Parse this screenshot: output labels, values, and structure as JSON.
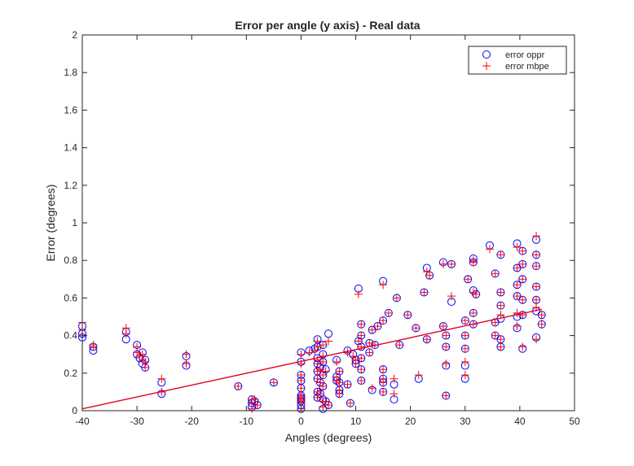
{
  "chart_data": {
    "type": "scatter",
    "title": "Error per angle (y axis) - Real data",
    "xlabel": "Angles (degrees)",
    "ylabel": "Error (degrees)",
    "xlim": [
      -40,
      50
    ],
    "ylim": [
      0,
      2
    ],
    "x_ticks": [
      "-40",
      "-30",
      "-20",
      "-10",
      "0",
      "10",
      "20",
      "30",
      "40",
      "50"
    ],
    "y_ticks": [
      "0",
      "0.2",
      "0.4",
      "0.6",
      "0.8",
      "1",
      "1.2",
      "1.4",
      "1.6",
      "1.8",
      "2"
    ],
    "grid": false,
    "legend_position": "top-right",
    "legend": [
      "error oppr",
      "error mbpe"
    ],
    "series": [
      {
        "name": "error oppr",
        "marker": "circle",
        "color": "#0000ff",
        "points": [
          [
            -40,
            0.45
          ],
          [
            -40,
            0.41
          ],
          [
            -40,
            0.39
          ],
          [
            -38,
            0.34
          ],
          [
            -38,
            0.32
          ],
          [
            -32,
            0.42
          ],
          [
            -32,
            0.38
          ],
          [
            -30,
            0.35
          ],
          [
            -30,
            0.3
          ],
          [
            -29.5,
            0.28
          ],
          [
            -29,
            0.31
          ],
          [
            -29,
            0.25
          ],
          [
            -28.5,
            0.27
          ],
          [
            -28.5,
            0.23
          ],
          [
            -25.5,
            0.15
          ],
          [
            -25.5,
            0.09
          ],
          [
            -21,
            0.29
          ],
          [
            -21,
            0.24
          ],
          [
            -11.5,
            0.13
          ],
          [
            -9,
            0.06
          ],
          [
            -9,
            0.04
          ],
          [
            -9,
            0.02
          ],
          [
            -8.5,
            0.05
          ],
          [
            -8,
            0.03
          ],
          [
            -5,
            0.15
          ],
          [
            0,
            0.31
          ],
          [
            0,
            0.26
          ],
          [
            0,
            0.19
          ],
          [
            0,
            0.16
          ],
          [
            0,
            0.12
          ],
          [
            0,
            0.08
          ],
          [
            0,
            0.07
          ],
          [
            0,
            0.06
          ],
          [
            0,
            0.05
          ],
          [
            0,
            0.03
          ],
          [
            0,
            0.01
          ],
          [
            1.5,
            0.32
          ],
          [
            2.5,
            0.33
          ],
          [
            3,
            0.38
          ],
          [
            3,
            0.34
          ],
          [
            3,
            0.28
          ],
          [
            3,
            0.25
          ],
          [
            3,
            0.21
          ],
          [
            3,
            0.17
          ],
          [
            3,
            0.1
          ],
          [
            3,
            0.07
          ],
          [
            3.5,
            0.23
          ],
          [
            3.5,
            0.15
          ],
          [
            3.5,
            0.09
          ],
          [
            4,
            0.35
          ],
          [
            4,
            0.3
          ],
          [
            4,
            0.26
          ],
          [
            4,
            0.19
          ],
          [
            4,
            0.13
          ],
          [
            4,
            0.06
          ],
          [
            4,
            0.01
          ],
          [
            4.5,
            0.22
          ],
          [
            4.5,
            0.05
          ],
          [
            5,
            0.41
          ],
          [
            5,
            0.03
          ],
          [
            6.5,
            0.27
          ],
          [
            6.5,
            0.18
          ],
          [
            6.5,
            0.16
          ],
          [
            7,
            0.21
          ],
          [
            7,
            0.15
          ],
          [
            7,
            0.11
          ],
          [
            7,
            0.09
          ],
          [
            8.5,
            0.32
          ],
          [
            8.5,
            0.14
          ],
          [
            9,
            0.04
          ],
          [
            9.5,
            0.3
          ],
          [
            10,
            0.27
          ],
          [
            10,
            0.25
          ],
          [
            10.5,
            0.65
          ],
          [
            10.5,
            0.37
          ],
          [
            11,
            0.46
          ],
          [
            11,
            0.4
          ],
          [
            11,
            0.34
          ],
          [
            11,
            0.28
          ],
          [
            11,
            0.22
          ],
          [
            11,
            0.16
          ],
          [
            12.5,
            0.36
          ],
          [
            12.5,
            0.31
          ],
          [
            13,
            0.43
          ],
          [
            13,
            0.11
          ],
          [
            13.5,
            0.35
          ],
          [
            14,
            0.45
          ],
          [
            15,
            0.69
          ],
          [
            15,
            0.48
          ],
          [
            15,
            0.22
          ],
          [
            15,
            0.17
          ],
          [
            15,
            0.15
          ],
          [
            15,
            0.1
          ],
          [
            16,
            0.52
          ],
          [
            17,
            0.06
          ],
          [
            17,
            0.14
          ],
          [
            17.5,
            0.6
          ],
          [
            18,
            0.35
          ],
          [
            19.5,
            0.51
          ],
          [
            21,
            0.44
          ],
          [
            21.5,
            0.17
          ],
          [
            22.5,
            0.63
          ],
          [
            23,
            0.76
          ],
          [
            23,
            0.38
          ],
          [
            23.5,
            0.72
          ],
          [
            26,
            0.79
          ],
          [
            26,
            0.45
          ],
          [
            26.5,
            0.4
          ],
          [
            26.5,
            0.34
          ],
          [
            26.5,
            0.24
          ],
          [
            26.5,
            0.08
          ],
          [
            27.5,
            0.78
          ],
          [
            27.5,
            0.58
          ],
          [
            30,
            0.48
          ],
          [
            30,
            0.4
          ],
          [
            30,
            0.33
          ],
          [
            30,
            0.24
          ],
          [
            30,
            0.17
          ],
          [
            30.5,
            0.7
          ],
          [
            31.5,
            0.81
          ],
          [
            31.5,
            0.79
          ],
          [
            31.5,
            0.64
          ],
          [
            31.5,
            0.46
          ],
          [
            31.5,
            0.52
          ],
          [
            32,
            0.62
          ],
          [
            34.5,
            0.88
          ],
          [
            35.5,
            0.73
          ],
          [
            35.5,
            0.47
          ],
          [
            35.5,
            0.4
          ],
          [
            36.5,
            0.83
          ],
          [
            36.5,
            0.63
          ],
          [
            36.5,
            0.56
          ],
          [
            36.5,
            0.49
          ],
          [
            36.5,
            0.38
          ],
          [
            36.5,
            0.34
          ],
          [
            39.5,
            0.89
          ],
          [
            39.5,
            0.76
          ],
          [
            39.5,
            0.67
          ],
          [
            39.5,
            0.61
          ],
          [
            39.5,
            0.5
          ],
          [
            39.5,
            0.44
          ],
          [
            40.5,
            0.85
          ],
          [
            40.5,
            0.78
          ],
          [
            40.5,
            0.7
          ],
          [
            40.5,
            0.59
          ],
          [
            40.5,
            0.51
          ],
          [
            40.5,
            0.33
          ],
          [
            43,
            0.91
          ],
          [
            43,
            0.83
          ],
          [
            43,
            0.77
          ],
          [
            43,
            0.66
          ],
          [
            43,
            0.59
          ],
          [
            43,
            0.53
          ],
          [
            43,
            0.39
          ],
          [
            44,
            0.51
          ],
          [
            44,
            0.46
          ]
        ]
      },
      {
        "name": "error mbpe",
        "marker": "plus",
        "color": "#ff0000",
        "points": [
          [
            -40,
            0.47
          ],
          [
            -40,
            0.43
          ],
          [
            -40,
            0.4
          ],
          [
            -38,
            0.35
          ],
          [
            -38,
            0.34
          ],
          [
            -32,
            0.44
          ],
          [
            -32,
            0.41
          ],
          [
            -30,
            0.34
          ],
          [
            -30,
            0.31
          ],
          [
            -29.5,
            0.29
          ],
          [
            -29,
            0.3
          ],
          [
            -29,
            0.27
          ],
          [
            -28.5,
            0.26
          ],
          [
            -28.5,
            0.23
          ],
          [
            -25.5,
            0.17
          ],
          [
            -25.5,
            0.1
          ],
          [
            -21,
            0.3
          ],
          [
            -21,
            0.25
          ],
          [
            -11.5,
            0.13
          ],
          [
            -9,
            0.06
          ],
          [
            -9,
            0.04
          ],
          [
            -9,
            0.01
          ],
          [
            -8.5,
            0.06
          ],
          [
            -8,
            0.03
          ],
          [
            -5,
            0.15
          ],
          [
            0,
            0.3
          ],
          [
            0,
            0.25
          ],
          [
            0,
            0.19
          ],
          [
            0,
            0.16
          ],
          [
            0,
            0.12
          ],
          [
            0,
            0.08
          ],
          [
            0,
            0.07
          ],
          [
            0,
            0.06
          ],
          [
            0,
            0.05
          ],
          [
            0,
            0.04
          ],
          [
            0,
            0.01
          ],
          [
            1.5,
            0.31
          ],
          [
            2.5,
            0.32
          ],
          [
            3,
            0.37
          ],
          [
            3,
            0.34
          ],
          [
            3,
            0.27
          ],
          [
            3,
            0.25
          ],
          [
            3,
            0.21
          ],
          [
            3,
            0.17
          ],
          [
            3,
            0.1
          ],
          [
            3,
            0.07
          ],
          [
            3.5,
            0.22
          ],
          [
            3.5,
            0.15
          ],
          [
            3.5,
            0.09
          ],
          [
            4,
            0.35
          ],
          [
            4,
            0.29
          ],
          [
            4,
            0.26
          ],
          [
            4,
            0.19
          ],
          [
            4,
            0.13
          ],
          [
            4,
            0.05
          ],
          [
            4,
            0.02
          ],
          [
            4.5,
            0.21
          ],
          [
            4.5,
            0.05
          ],
          [
            5,
            0.37
          ],
          [
            5,
            0.03
          ],
          [
            6.5,
            0.26
          ],
          [
            6.5,
            0.18
          ],
          [
            6.5,
            0.16
          ],
          [
            7,
            0.21
          ],
          [
            7,
            0.15
          ],
          [
            7,
            0.11
          ],
          [
            7,
            0.09
          ],
          [
            8.5,
            0.31
          ],
          [
            8.5,
            0.14
          ],
          [
            9,
            0.04
          ],
          [
            9.5,
            0.29
          ],
          [
            10,
            0.27
          ],
          [
            10,
            0.25
          ],
          [
            10.5,
            0.62
          ],
          [
            10.5,
            0.37
          ],
          [
            11,
            0.46
          ],
          [
            11,
            0.4
          ],
          [
            11,
            0.34
          ],
          [
            11,
            0.28
          ],
          [
            11,
            0.22
          ],
          [
            11,
            0.16
          ],
          [
            12.5,
            0.36
          ],
          [
            12.5,
            0.31
          ],
          [
            13,
            0.43
          ],
          [
            13,
            0.12
          ],
          [
            13.5,
            0.35
          ],
          [
            14,
            0.45
          ],
          [
            15,
            0.67
          ],
          [
            15,
            0.48
          ],
          [
            15,
            0.22
          ],
          [
            15,
            0.17
          ],
          [
            15,
            0.15
          ],
          [
            15,
            0.1
          ],
          [
            16,
            0.52
          ],
          [
            17,
            0.09
          ],
          [
            17,
            0.17
          ],
          [
            17.5,
            0.6
          ],
          [
            18,
            0.35
          ],
          [
            19.5,
            0.51
          ],
          [
            21,
            0.44
          ],
          [
            21.5,
            0.19
          ],
          [
            22.5,
            0.63
          ],
          [
            23,
            0.74
          ],
          [
            23,
            0.38
          ],
          [
            23.5,
            0.72
          ],
          [
            26,
            0.78
          ],
          [
            26,
            0.45
          ],
          [
            26.5,
            0.4
          ],
          [
            26.5,
            0.34
          ],
          [
            26.5,
            0.25
          ],
          [
            26.5,
            0.08
          ],
          [
            27.5,
            0.78
          ],
          [
            27.5,
            0.61
          ],
          [
            30,
            0.48
          ],
          [
            30,
            0.4
          ],
          [
            30,
            0.33
          ],
          [
            30,
            0.26
          ],
          [
            30,
            0.19
          ],
          [
            30.5,
            0.7
          ],
          [
            31.5,
            0.8
          ],
          [
            31.5,
            0.79
          ],
          [
            31.5,
            0.63
          ],
          [
            31.5,
            0.46
          ],
          [
            31.5,
            0.52
          ],
          [
            32,
            0.62
          ],
          [
            34.5,
            0.86
          ],
          [
            35.5,
            0.73
          ],
          [
            35.5,
            0.47
          ],
          [
            35.5,
            0.4
          ],
          [
            36.5,
            0.83
          ],
          [
            36.5,
            0.63
          ],
          [
            36.5,
            0.56
          ],
          [
            36.5,
            0.51
          ],
          [
            36.5,
            0.38
          ],
          [
            36.5,
            0.34
          ],
          [
            39.5,
            0.87
          ],
          [
            39.5,
            0.76
          ],
          [
            39.5,
            0.67
          ],
          [
            39.5,
            0.61
          ],
          [
            39.5,
            0.52
          ],
          [
            39.5,
            0.45
          ],
          [
            40.5,
            0.85
          ],
          [
            40.5,
            0.78
          ],
          [
            40.5,
            0.7
          ],
          [
            40.5,
            0.59
          ],
          [
            40.5,
            0.51
          ],
          [
            40.5,
            0.34
          ],
          [
            43,
            0.93
          ],
          [
            43,
            0.83
          ],
          [
            43,
            0.77
          ],
          [
            43,
            0.66
          ],
          [
            43,
            0.59
          ],
          [
            43,
            0.55
          ],
          [
            43,
            0.38
          ],
          [
            44,
            0.51
          ],
          [
            44,
            0.46
          ]
        ]
      }
    ],
    "fit_lines": [
      {
        "color": "#0000ff",
        "x": [
          -40,
          44
        ],
        "y": [
          0.01,
          0.54
        ]
      },
      {
        "color": "#ff0000",
        "x": [
          -40,
          44
        ],
        "y": [
          0.01,
          0.54
        ]
      }
    ]
  }
}
